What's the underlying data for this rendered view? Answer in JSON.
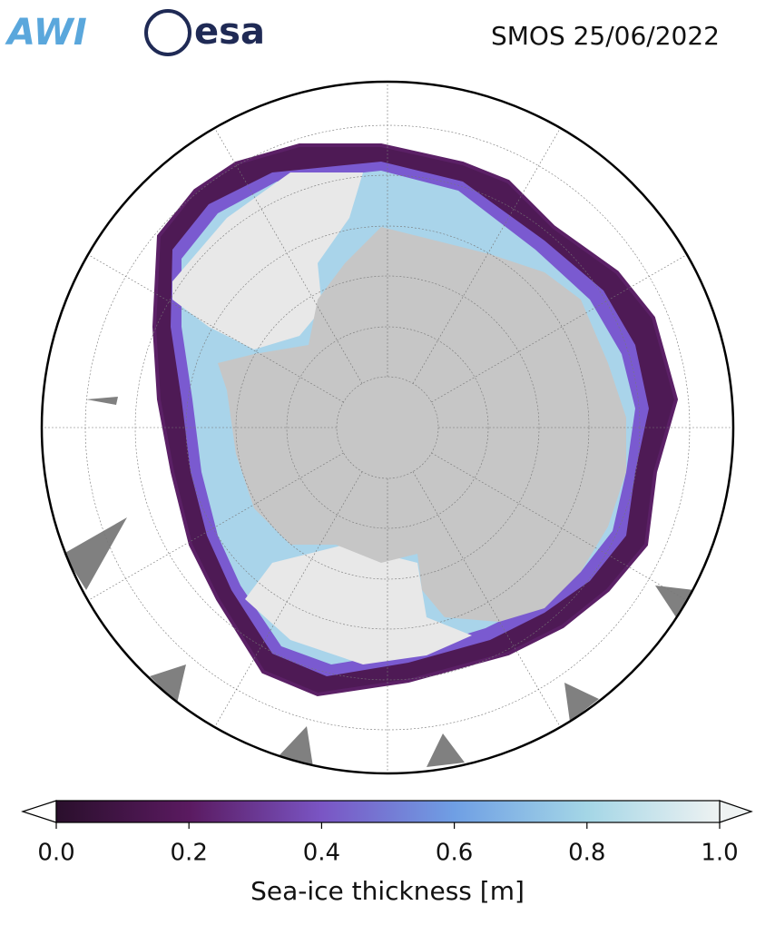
{
  "header": {
    "logos": [
      "AWI",
      "esa"
    ],
    "title": "SMOS 25/06/2022"
  },
  "colorbar": {
    "label": "Sea-ice thickness [m]",
    "range": [
      0,
      1
    ],
    "ticks": [
      {
        "value": 0,
        "label": "0.0"
      },
      0.2,
      0.4,
      0.6,
      0.8,
      {
        "value": 1,
        "label": "1.0"
      }
    ],
    "colors": [
      "#2a0f2c",
      "#5a1a60",
      "#7a55c4",
      "#6f9fe4",
      "#a4d6e6",
      "#eef2f2"
    ]
  }
}
